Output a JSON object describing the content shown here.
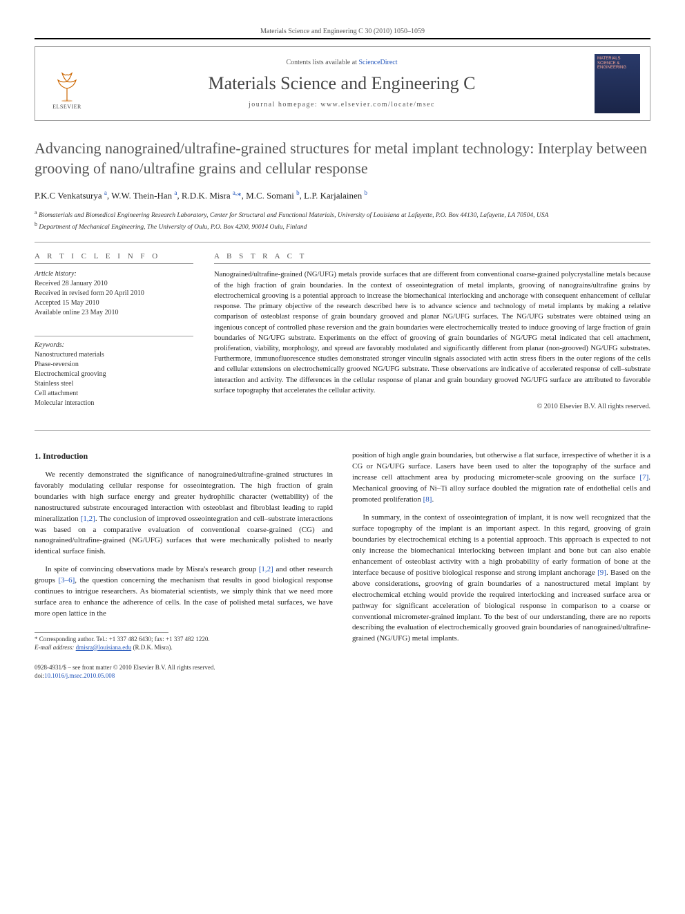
{
  "page_header": "Materials Science and Engineering C 30 (2010) 1050–1059",
  "masthead": {
    "contents_prefix": "Contents lists available at ",
    "contents_link": "ScienceDirect",
    "journal_title": "Materials Science and Engineering C",
    "homepage_prefix": "journal homepage: ",
    "homepage_url": "www.elsevier.com/locate/msec",
    "publisher_name": "ELSEVIER",
    "cover_title": "MATERIALS SCIENCE & ENGINEERING"
  },
  "article": {
    "title": "Advancing nanograined/ultrafine-grained structures for metal implant technology: Interplay between grooving of nano/ultrafine grains and cellular response",
    "authors_html": "P.K.C Venkatsurya <sup>a</sup>, W.W. Thein-Han <sup>a</sup>, R.D.K. Misra <sup>a,</sup><span class='corr-star'>*</span>, M.C. Somani <sup>b</sup>, L.P. Karjalainen <sup>b</sup>",
    "affiliations": [
      {
        "marker": "a",
        "text": "Biomaterials and Biomedical Engineering Research Laboratory, Center for Structural and Functional Materials, University of Louisiana at Lafayette, P.O. Box 44130, Lafayette, LA 70504, USA"
      },
      {
        "marker": "b",
        "text": "Department of Mechanical Engineering, The University of Oulu, P.O. Box 4200, 90014 Oulu, Finland"
      }
    ]
  },
  "meta": {
    "info_heading": "A R T I C L E   I N F O",
    "history_label": "Article history:",
    "history_lines": [
      "Received 28 January 2010",
      "Received in revised form 20 April 2010",
      "Accepted 15 May 2010",
      "Available online 23 May 2010"
    ],
    "keywords_label": "Keywords:",
    "keywords": [
      "Nanostructured materials",
      "Phase-reversion",
      "Electrochemical grooving",
      "Stainless steel",
      "Cell attachment",
      "Molecular interaction"
    ],
    "abstract_heading": "A B S T R A C T",
    "abstract_text": "Nanograined/ultrafine-grained (NG/UFG) metals provide surfaces that are different from conventional coarse-grained polycrystalline metals because of the high fraction of grain boundaries. In the context of osseointegration of metal implants, grooving of nanograins/ultrafine grains by electrochemical grooving is a potential approach to increase the biomechanical interlocking and anchorage with consequent enhancement of cellular response. The primary objective of the research described here is to advance science and technology of metal implants by making a relative comparison of osteoblast response of grain boundary grooved and planar NG/UFG surfaces. The NG/UFG substrates were obtained using an ingenious concept of controlled phase reversion and the grain boundaries were electrochemically treated to induce grooving of large fraction of grain boundaries of NG/UFG substrate. Experiments on the effect of grooving of grain boundaries of NG/UFG metal indicated that cell attachment, proliferation, viability, morphology, and spread are favorably modulated and significantly different from planar (non-grooved) NG/UFG substrates. Furthermore, immunofluorescence studies demonstrated stronger vinculin signals associated with actin stress fibers in the outer regions of the cells and cellular extensions on electrochemically grooved NG/UFG substrate. These observations are indicative of accelerated response of cell–substrate interaction and activity. The differences in the cellular response of planar and grain boundary grooved NG/UFG surface are attributed to favorable surface topography that accelerates the cellular activity.",
    "copyright": "© 2010 Elsevier B.V. All rights reserved."
  },
  "body": {
    "section_heading": "1. Introduction",
    "left": [
      "We recently demonstrated the significance of nanograined/ultrafine-grained structures in favorably modulating cellular response for osseointegration. The high fraction of grain boundaries with high surface energy and greater hydrophilic character (wettability) of the nanostructured substrate encouraged interaction with osteoblast and fibroblast leading to rapid mineralization <span class='ref-link'>[1,2]</span>. The conclusion of improved osseointegration and cell–substrate interactions was based on a comparative evaluation of conventional coarse-grained (CG) and nanograined/ultrafine-grained (NG/UFG) surfaces that were mechanically polished to nearly identical surface finish.",
      "In spite of convincing observations made by Misra's research group <span class='ref-link'>[1,2]</span> and other research groups <span class='ref-link'>[3–6]</span>, the question concerning the mechanism that results in good biological response continues to intrigue researchers. As biomaterial scientists, we simply think that we need more surface area to enhance the adherence of cells. In the case of polished metal surfaces, we have more open lattice in the"
    ],
    "right": [
      "position of high angle grain boundaries, but otherwise a flat surface, irrespective of whether it is a CG or NG/UFG surface. Lasers have been used to alter the topography of the surface and increase cell attachment area by producing micrometer-scale grooving on the surface <span class='ref-link'>[7]</span>. Mechanical grooving of Ni–Ti alloy surface doubled the migration rate of endothelial cells and promoted proliferation <span class='ref-link'>[8]</span>.",
      "In summary, in the context of osseointegration of implant, it is now well recognized that the surface topography of the implant is an important aspect. In this regard, grooving of grain boundaries by electrochemical etching is a potential approach. This approach is expected to not only increase the biomechanical interlocking between implant and bone but can also enable enhancement of osteoblast activity with a high probability of early formation of bone at the interface because of positive biological response and strong implant anchorage <span class='ref-link'>[9]</span>. Based on the above considerations, grooving of grain boundaries of a nanostructured metal implant by electrochemical etching would provide the required interlocking and increased surface area or pathway for significant acceleration of biological response in comparison to a coarse or conventional micrometer-grained implant. To the best of our understanding, there are no reports describing the evaluation of electrochemically grooved grain boundaries of nanograined/ultrafine-grained (NG/UFG) metal implants."
    ]
  },
  "footnote": {
    "corr_label": "* Corresponding author.",
    "tel": "Tel.: +1 337 482 6430; fax: +1 337 482 1220.",
    "email_label": "E-mail address:",
    "email": "dmisra@louisiana.edu",
    "email_suffix": "(R.D.K. Misra)."
  },
  "footer": {
    "issn_line": "0928-4931/$ – see front matter © 2010 Elsevier B.V. All rights reserved.",
    "doi_prefix": "doi:",
    "doi": "10.1016/j.msec.2010.05.008"
  }
}
